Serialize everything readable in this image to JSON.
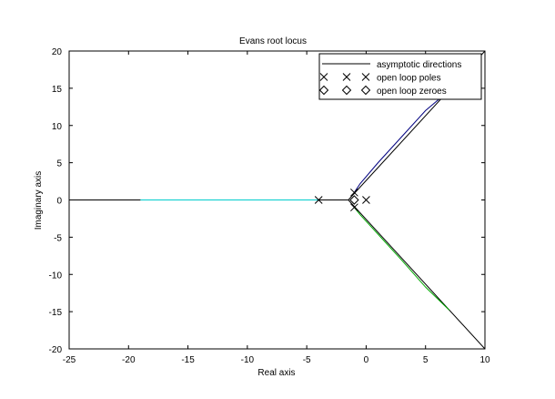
{
  "chart_data": {
    "type": "line",
    "title": "Evans root locus",
    "xlabel": "Real axis",
    "ylabel": "Imaginary axis",
    "xlim": [
      -25,
      10
    ],
    "ylim": [
      -20,
      20
    ],
    "xticks": [
      -25,
      -20,
      -15,
      -10,
      -5,
      0,
      5,
      10
    ],
    "yticks": [
      -20,
      -15,
      -10,
      -5,
      0,
      5,
      10,
      15,
      20
    ],
    "legend": {
      "location": "top-right",
      "entries": [
        {
          "label": "asymptotic directions",
          "kind": "line",
          "color": "#000000"
        },
        {
          "label": "open loop poles",
          "kind": "marker",
          "marker": "x"
        },
        {
          "label": "open loop zeroes",
          "kind": "marker",
          "marker": "diamond"
        }
      ]
    },
    "series": [
      {
        "name": "asymptote-upper",
        "color": "#000000",
        "x": [
          -1.5,
          10
        ],
        "y": [
          0,
          20
        ]
      },
      {
        "name": "asymptote-lower",
        "color": "#000000",
        "x": [
          -1.5,
          10
        ],
        "y": [
          0,
          -20
        ]
      },
      {
        "name": "asymptote-real",
        "color": "#000000",
        "x": [
          -1.5,
          -25
        ],
        "y": [
          0,
          0
        ]
      },
      {
        "name": "branch-real-axis",
        "color": "#00cccc",
        "x": [
          -4,
          -19
        ],
        "y": [
          0,
          0
        ]
      },
      {
        "name": "branch-upper",
        "color": "#000080",
        "x": [
          -1,
          -0.5,
          1,
          3,
          5,
          6.7
        ],
        "y": [
          1,
          2.2,
          5.0,
          8.5,
          12.0,
          14.3
        ]
      },
      {
        "name": "branch-lower",
        "color": "#00aa00",
        "x": [
          -1,
          -0.5,
          1,
          3,
          5,
          7
        ],
        "y": [
          -1,
          -2.0,
          -4.6,
          -8.1,
          -11.7,
          -14.8
        ]
      }
    ],
    "poles": [
      {
        "x": 0,
        "y": 0
      },
      {
        "x": -1,
        "y": 1
      },
      {
        "x": -1,
        "y": -1
      },
      {
        "x": -4,
        "y": 0
      }
    ],
    "zeroes": [
      {
        "x": -1,
        "y": 0
      }
    ]
  }
}
